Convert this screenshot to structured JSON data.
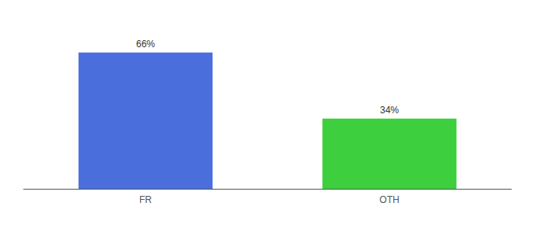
{
  "chart_data": {
    "type": "bar",
    "categories": [
      "FR",
      "OTH"
    ],
    "values": [
      66,
      34
    ],
    "value_labels": [
      "66%",
      "34%"
    ],
    "data_labels": true,
    "colors": [
      "#4a6fdc",
      "#3ecf3e"
    ],
    "ylim": [
      0,
      80
    ],
    "grid": false,
    "tick_labels": "x"
  }
}
